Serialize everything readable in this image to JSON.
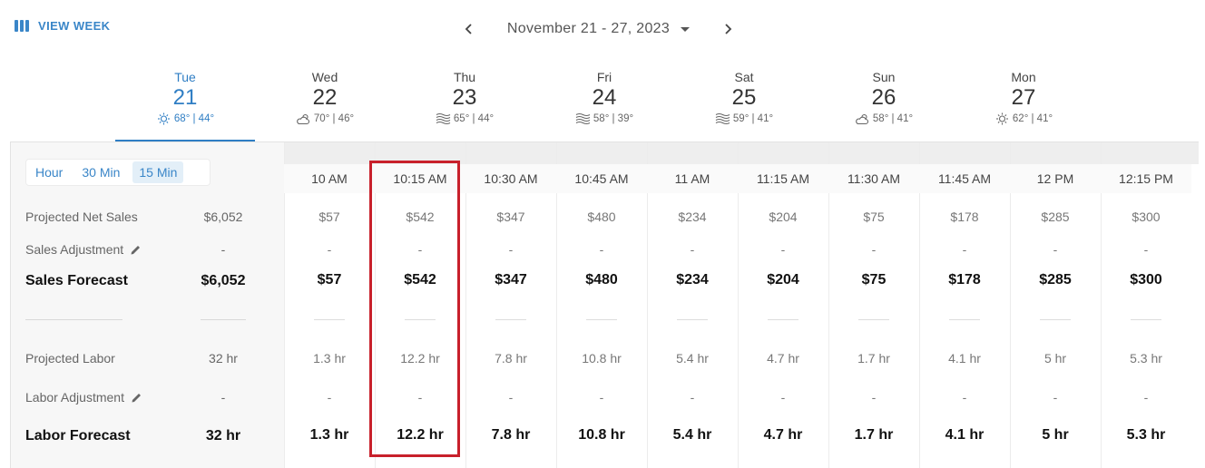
{
  "header": {
    "view_week_label": "VIEW WEEK",
    "date_range": "November 21 - 27, 2023"
  },
  "days": [
    {
      "name": "Tue",
      "num": "21",
      "icon": "sun-icon",
      "temps": "68° | 44°",
      "active": true
    },
    {
      "name": "Wed",
      "num": "22",
      "icon": "cloud-sun-icon",
      "temps": "70° | 46°",
      "active": false
    },
    {
      "name": "Thu",
      "num": "23",
      "icon": "wind-icon",
      "temps": "65° | 44°",
      "active": false
    },
    {
      "name": "Fri",
      "num": "24",
      "icon": "wind-icon",
      "temps": "58° | 39°",
      "active": false
    },
    {
      "name": "Sat",
      "num": "25",
      "icon": "wind-icon",
      "temps": "59° | 41°",
      "active": false
    },
    {
      "name": "Sun",
      "num": "26",
      "icon": "cloud-sun-icon",
      "temps": "58° | 41°",
      "active": false
    },
    {
      "name": "Mon",
      "num": "27",
      "icon": "sun-icon",
      "temps": "62° | 41°",
      "active": false
    }
  ],
  "interval": {
    "options": [
      "Hour",
      "30 Min",
      "15 Min"
    ],
    "selected": "15 Min"
  },
  "rows": {
    "projected_net_sales": {
      "label": "Projected Net Sales",
      "total": "$6,052"
    },
    "sales_adjustment": {
      "label": "Sales Adjustment",
      "total": "-"
    },
    "sales_forecast": {
      "label": "Sales Forecast",
      "total": "$6,052"
    },
    "projected_labor": {
      "label": "Projected Labor",
      "total": "32 hr"
    },
    "labor_adjustment": {
      "label": "Labor Adjustment",
      "total": "-"
    },
    "labor_forecast": {
      "label": "Labor Forecast",
      "total": "32 hr"
    }
  },
  "columns": [
    {
      "time": "10 AM",
      "sales": "$57",
      "sales_adj": "-",
      "sales_fc": "$57",
      "labor": "1.3 hr",
      "labor_adj": "-",
      "labor_fc": "1.3 hr"
    },
    {
      "time": "10:15 AM",
      "sales": "$542",
      "sales_adj": "-",
      "sales_fc": "$542",
      "labor": "12.2 hr",
      "labor_adj": "-",
      "labor_fc": "12.2 hr"
    },
    {
      "time": "10:30 AM",
      "sales": "$347",
      "sales_adj": "-",
      "sales_fc": "$347",
      "labor": "7.8 hr",
      "labor_adj": "-",
      "labor_fc": "7.8 hr"
    },
    {
      "time": "10:45 AM",
      "sales": "$480",
      "sales_adj": "-",
      "sales_fc": "$480",
      "labor": "10.8 hr",
      "labor_adj": "-",
      "labor_fc": "10.8 hr"
    },
    {
      "time": "11 AM",
      "sales": "$234",
      "sales_adj": "-",
      "sales_fc": "$234",
      "labor": "5.4 hr",
      "labor_adj": "-",
      "labor_fc": "5.4 hr"
    },
    {
      "time": "11:15 AM",
      "sales": "$204",
      "sales_adj": "-",
      "sales_fc": "$204",
      "labor": "4.7 hr",
      "labor_adj": "-",
      "labor_fc": "4.7 hr"
    },
    {
      "time": "11:30 AM",
      "sales": "$75",
      "sales_adj": "-",
      "sales_fc": "$75",
      "labor": "1.7 hr",
      "labor_adj": "-",
      "labor_fc": "1.7 hr"
    },
    {
      "time": "11:45 AM",
      "sales": "$178",
      "sales_adj": "-",
      "sales_fc": "$178",
      "labor": "4.1 hr",
      "labor_adj": "-",
      "labor_fc": "4.1 hr"
    },
    {
      "time": "12 PM",
      "sales": "$285",
      "sales_adj": "-",
      "sales_fc": "$285",
      "labor": "5 hr",
      "labor_adj": "-",
      "labor_fc": "5 hr"
    },
    {
      "time": "12:15 PM",
      "sales": "$300",
      "sales_adj": "-",
      "sales_fc": "$300",
      "labor": "5.3 hr",
      "labor_adj": "-",
      "labor_fc": "5.3 hr"
    }
  ],
  "colors": {
    "accent": "#2f7ec4",
    "highlight_border": "#c8202b"
  }
}
